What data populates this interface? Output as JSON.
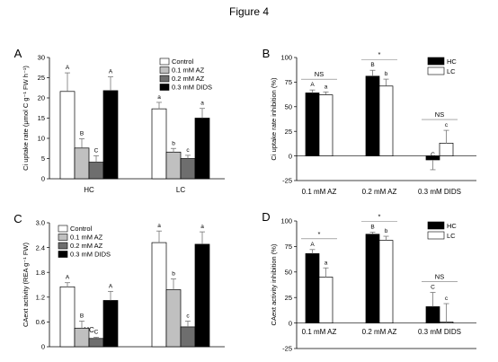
{
  "figure_title": "Figure 4",
  "colors": {
    "Control": "#ffffff",
    "0.1 mM AZ": "#c0c0c0",
    "0.2 mM AZ": "#6e6e6e",
    "0.3 mM DIDS": "#000000",
    "HC": "#000000",
    "LC": "#ffffff"
  },
  "chart_data": [
    {
      "panel": "A",
      "type": "bar",
      "ylabel": "Ci uptake rate (μmol C g⁻¹ FW h⁻¹)",
      "ylim": [
        0,
        30
      ],
      "yticks": [
        "0",
        "5",
        "10",
        "15",
        "20",
        "25",
        "30"
      ],
      "categories": [
        "HC",
        "LC"
      ],
      "series": [
        {
          "name": "Control",
          "values": [
            21.6,
            17.3
          ],
          "errors": [
            4.6,
            1.6
          ],
          "letters": [
            "A",
            "a"
          ]
        },
        {
          "name": "0.1 mM AZ",
          "values": [
            7.6,
            6.6
          ],
          "errors": [
            2.3,
            0.9
          ],
          "letters": [
            "B",
            "b"
          ]
        },
        {
          "name": "0.2 mM AZ",
          "values": [
            4.1,
            5.0
          ],
          "errors": [
            1.6,
            0.8
          ],
          "letters": [
            "C",
            "c"
          ]
        },
        {
          "name": "0.3 mM DIDS",
          "values": [
            21.8,
            15.0
          ],
          "errors": [
            3.4,
            2.4
          ],
          "letters": [
            "A",
            "a"
          ]
        }
      ],
      "legend": "top-right",
      "significance": []
    },
    {
      "panel": "B",
      "type": "bar",
      "ylabel": "Ci uptake rate inhibition (%)",
      "ylim": [
        -25,
        100
      ],
      "yticks": [
        "-25",
        "0",
        "25",
        "50",
        "75",
        "100"
      ],
      "categories": [
        "0.1 mM AZ",
        "0.2 mM AZ",
        "0.3 mM DIDS"
      ],
      "series": [
        {
          "name": "HC",
          "values": [
            64,
            81,
            -4
          ],
          "errors": [
            3,
            6,
            10
          ],
          "letters": [
            "A",
            "B",
            "C"
          ]
        },
        {
          "name": "LC",
          "values": [
            62,
            71,
            13
          ],
          "errors": [
            3,
            7,
            13
          ],
          "letters": [
            "a",
            "b",
            "c"
          ]
        }
      ],
      "legend": "top-right",
      "significance": [
        "NS",
        "*",
        "NS"
      ]
    },
    {
      "panel": "C",
      "type": "bar",
      "ylabel": "CAext activity (REA g⁻¹ FW)",
      "ylim": [
        0,
        3.0
      ],
      "yticks": [
        "0",
        "0.6",
        "1.2",
        "1.8",
        "2.4",
        "3.0"
      ],
      "categories": [
        "HC",
        "LC"
      ],
      "series": [
        {
          "name": "Control",
          "values": [
            1.45,
            2.52
          ],
          "errors": [
            0.1,
            0.28
          ],
          "letters": [
            "A",
            "a"
          ]
        },
        {
          "name": "0.1 mM AZ",
          "values": [
            0.45,
            1.38
          ],
          "errors": [
            0.17,
            0.26
          ],
          "letters": [
            "B",
            "b"
          ]
        },
        {
          "name": "0.2 mM AZ",
          "values": [
            0.2,
            0.48
          ],
          "errors": [
            0.03,
            0.14
          ],
          "letters": [
            "C",
            "c"
          ]
        },
        {
          "name": "0.3 mM DIDS",
          "values": [
            1.12,
            2.48
          ],
          "errors": [
            0.22,
            0.3
          ],
          "letters": [
            "A",
            "a"
          ]
        }
      ],
      "legend": "top-right",
      "significance": []
    },
    {
      "panel": "D",
      "type": "bar",
      "ylabel": "CAext activity inhibition (%)",
      "ylim": [
        -25,
        100
      ],
      "yticks": [
        "-25",
        "0",
        "25",
        "50",
        "75",
        "100"
      ],
      "categories": [
        "0.1 mM AZ",
        "0.2 mM AZ",
        "0.3 mM DIDS"
      ],
      "series": [
        {
          "name": "HC",
          "values": [
            68,
            87,
            16
          ],
          "errors": [
            4,
            2,
            14
          ],
          "letters": [
            "A",
            "B",
            "C"
          ]
        },
        {
          "name": "LC",
          "values": [
            45,
            81,
            1
          ],
          "errors": [
            9,
            4,
            18
          ],
          "letters": [
            "a",
            "b",
            "c"
          ]
        }
      ],
      "legend": "top-right",
      "significance": [
        "*",
        "*",
        "NS"
      ]
    }
  ]
}
